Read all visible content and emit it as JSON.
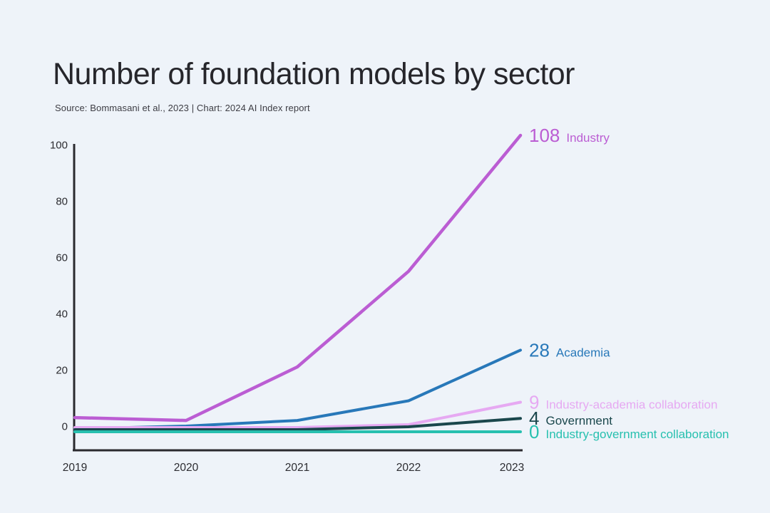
{
  "title": "Number of foundation models by sector",
  "subtitle": "Source: Bommasani et al., 2023 | Chart: 2024 AI Index report",
  "chart_data": {
    "type": "line",
    "x": [
      2019,
      2020,
      2021,
      2022,
      2023
    ],
    "xticks": [
      "2019",
      "2020",
      "2021",
      "2022",
      "2023"
    ],
    "yticks": [
      0,
      20,
      40,
      60,
      80,
      100
    ],
    "ylim": [
      0,
      100
    ],
    "grid": false,
    "legend_position": "right-end-labels",
    "series": [
      {
        "name": "Industry",
        "values": [
          3,
          2,
          21,
          55,
          108
        ],
        "end_label": "108",
        "color": "#bb5dd3"
      },
      {
        "name": "Academia",
        "values": [
          0,
          1,
          3,
          10,
          28
        ],
        "end_label": "28",
        "color": "#2878b9"
      },
      {
        "name": "Industry-academia collaboration",
        "values": [
          0,
          0,
          0,
          1,
          9
        ],
        "end_label": "9",
        "color": "#e6a9f2"
      },
      {
        "name": "Government",
        "values": [
          0,
          0,
          0,
          1,
          4
        ],
        "end_label": "4",
        "color": "#1a474c"
      },
      {
        "name": "Industry-government collaboration",
        "values": [
          0,
          0,
          0,
          0,
          0
        ],
        "end_label": "0",
        "color": "#27c0af"
      }
    ],
    "title": "Number of foundation models by sector",
    "xlabel": "",
    "ylabel": ""
  },
  "colors": {
    "background": "#eef3f9",
    "axis": "#2a2a2f",
    "tick_text": "#2c2c31",
    "title_text": "#26262b",
    "subtitle_text": "#3d3d44"
  }
}
